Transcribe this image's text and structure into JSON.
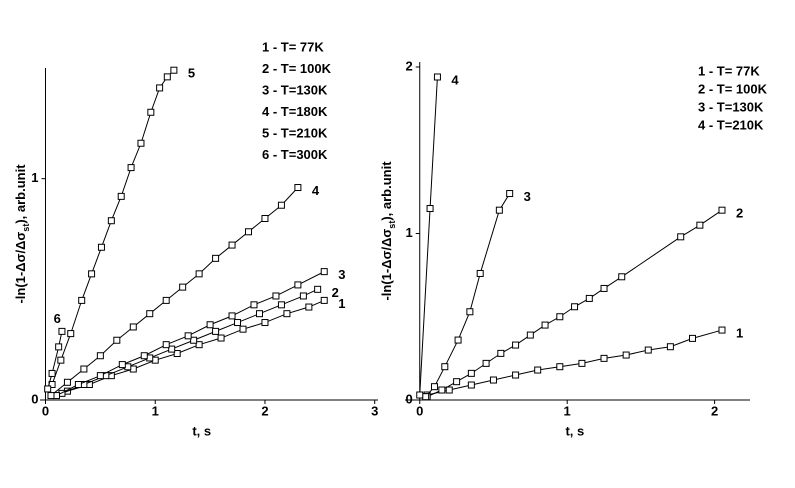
{
  "chart_data": [
    {
      "type": "line",
      "xlabel": "t, s",
      "ylabel": [
        "-ln(1-Δσ/Δσ",
        "st",
        "), arb.unit"
      ],
      "xlim": [
        -0.05,
        3.03
      ],
      "ylim": [
        0,
        1.5
      ],
      "xticks": [
        0,
        1,
        2,
        3
      ],
      "yticks": [
        0,
        1
      ],
      "series": [
        {
          "name": "1 - T= 77K",
          "label": "1",
          "color": "#000000",
          "x": [
            0.2,
            0.4,
            0.6,
            0.8,
            1.0,
            1.2,
            1.4,
            1.6,
            1.8,
            2.0,
            2.2,
            2.4,
            2.54
          ],
          "values": [
            0.04,
            0.07,
            0.11,
            0.14,
            0.18,
            0.21,
            0.25,
            0.28,
            0.32,
            0.35,
            0.39,
            0.42,
            0.45
          ]
        },
        {
          "name": "2 - T= 100K",
          "label": "2",
          "color": "#000000",
          "x": [
            0.15,
            0.35,
            0.55,
            0.75,
            0.95,
            1.15,
            1.35,
            1.55,
            1.75,
            1.95,
            2.15,
            2.35,
            2.48
          ],
          "values": [
            0.03,
            0.07,
            0.11,
            0.15,
            0.19,
            0.23,
            0.27,
            0.31,
            0.35,
            0.39,
            0.43,
            0.47,
            0.5
          ]
        },
        {
          "name": "3 - T=130K",
          "label": "3",
          "color": "#000000",
          "x": [
            0.1,
            0.3,
            0.5,
            0.7,
            0.9,
            1.1,
            1.3,
            1.5,
            1.7,
            1.9,
            2.1,
            2.3,
            2.54
          ],
          "values": [
            0.02,
            0.07,
            0.11,
            0.16,
            0.2,
            0.25,
            0.29,
            0.34,
            0.38,
            0.43,
            0.47,
            0.52,
            0.58
          ]
        },
        {
          "name": "4 - T=180K",
          "label": "4",
          "color": "#000000",
          "x": [
            0.05,
            0.2,
            0.35,
            0.5,
            0.65,
            0.8,
            0.95,
            1.1,
            1.25,
            1.4,
            1.55,
            1.7,
            1.85,
            2.0,
            2.15,
            2.3
          ],
          "values": [
            0.02,
            0.08,
            0.14,
            0.2,
            0.27,
            0.33,
            0.39,
            0.45,
            0.51,
            0.57,
            0.64,
            0.7,
            0.76,
            0.82,
            0.88,
            0.96
          ]
        },
        {
          "name": "5 - T=210K",
          "label": "5",
          "color": "#000000",
          "x": [
            0.06,
            0.14,
            0.23,
            0.33,
            0.42,
            0.51,
            0.6,
            0.69,
            0.78,
            0.87,
            0.96,
            1.04,
            1.11,
            1.17
          ],
          "values": [
            0.07,
            0.18,
            0.3,
            0.45,
            0.57,
            0.69,
            0.81,
            0.92,
            1.05,
            1.16,
            1.3,
            1.41,
            1.46,
            1.49
          ]
        },
        {
          "name": "6 - T=300K",
          "label": "6",
          "color": "#000000",
          "x": [
            0.02,
            0.06,
            0.12,
            0.15
          ],
          "values": [
            0.05,
            0.12,
            0.24,
            0.31
          ]
        }
      ]
    },
    {
      "type": "line",
      "xlabel": "t, s",
      "ylabel": [
        "-ln(1-Δσ/Δσ",
        "st",
        "), arb.unit"
      ],
      "xlim": [
        -0.1,
        2.24
      ],
      "ylim": [
        0,
        2.03
      ],
      "xticks": [
        0,
        1,
        2
      ],
      "yticks": [
        0,
        1,
        2
      ],
      "series": [
        {
          "name": "1 - T= 77K",
          "label": "1",
          "color": "#000000",
          "x": [
            0.05,
            0.2,
            0.35,
            0.5,
            0.65,
            0.8,
            0.95,
            1.1,
            1.25,
            1.4,
            1.55,
            1.7,
            1.85,
            2.05
          ],
          "values": [
            0.03,
            0.06,
            0.09,
            0.12,
            0.15,
            0.18,
            0.2,
            0.22,
            0.25,
            0.27,
            0.3,
            0.32,
            0.37,
            0.42
          ]
        },
        {
          "name": "2 - T= 100K",
          "label": "2",
          "color": "#000000",
          "x": [
            0.05,
            0.15,
            0.25,
            0.35,
            0.45,
            0.55,
            0.65,
            0.75,
            0.85,
            0.95,
            1.05,
            1.15,
            1.25,
            1.37,
            1.77,
            1.9,
            2.05
          ],
          "values": [
            0.02,
            0.06,
            0.11,
            0.16,
            0.22,
            0.28,
            0.33,
            0.39,
            0.45,
            0.5,
            0.56,
            0.61,
            0.67,
            0.74,
            0.98,
            1.05,
            1.14
          ]
        },
        {
          "name": "3 - T=130K",
          "label": "3",
          "color": "#000000",
          "x": [
            0.04,
            0.1,
            0.17,
            0.26,
            0.34,
            0.41,
            0.54,
            0.61
          ],
          "values": [
            0.02,
            0.08,
            0.2,
            0.36,
            0.53,
            0.76,
            1.14,
            1.24
          ]
        },
        {
          "name": "4 - T=210K",
          "label": "4",
          "color": "#000000",
          "x": [
            0,
            0.07,
            0.12
          ],
          "values": [
            0.03,
            1.15,
            1.94
          ]
        }
      ]
    }
  ]
}
